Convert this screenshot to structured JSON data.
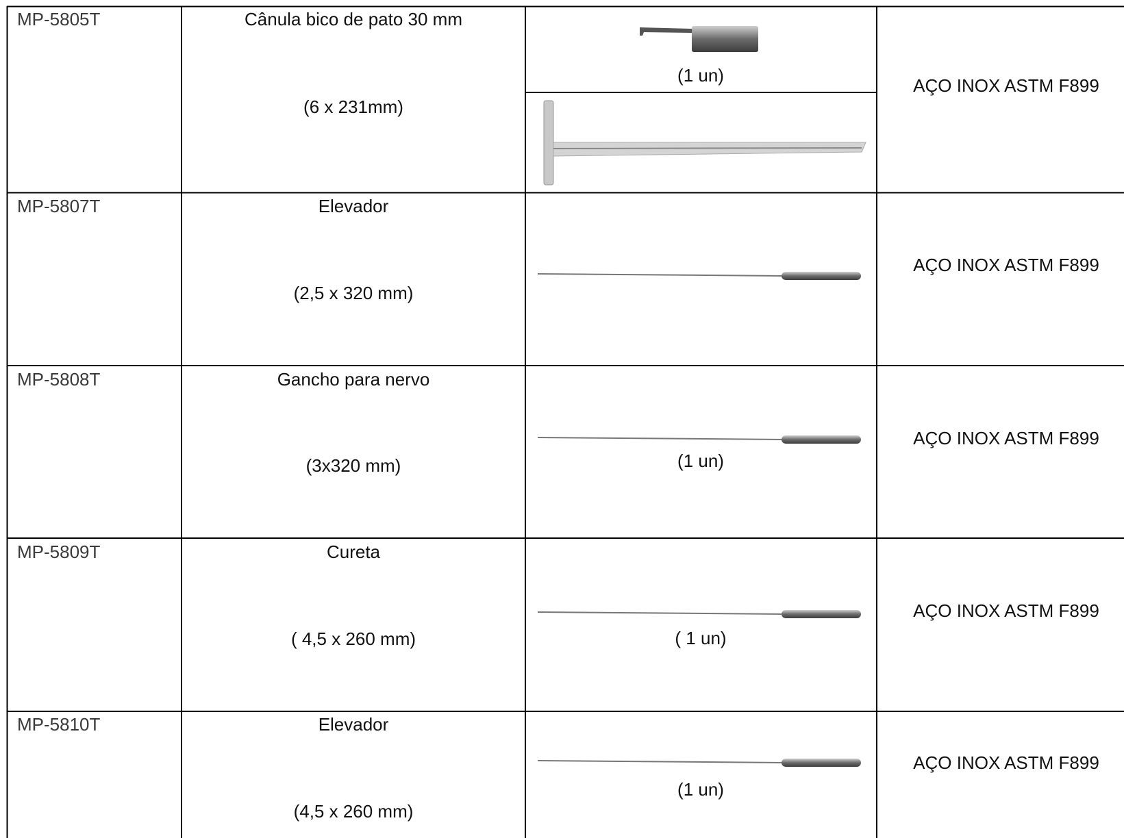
{
  "rows": [
    {
      "code": "MP-5805T",
      "name": "Cânula bico de pato 30 mm",
      "size": "(6 x 231mm)",
      "quantity": "(1 un)",
      "material": "AÇO INOX ASTM F899"
    },
    {
      "code": "MP-5807T",
      "name": "Elevador",
      "size": "(2,5 x 320 mm)",
      "material": "AÇO INOX ASTM F899"
    },
    {
      "code": "MP-5808T",
      "name": "Gancho para nervo",
      "size": "(3x320 mm)",
      "quantity": "(1 un)",
      "material": "AÇO INOX ASTM F899"
    },
    {
      "code": "MP-5809T",
      "name": "Cureta",
      "size": "( 4,5 x 260 mm)",
      "quantity": "( 1 un)",
      "material": "AÇO INOX ASTM F899"
    },
    {
      "code": "MP-5810T",
      "name": "Elevador",
      "size": "(4,5 x 260 mm)",
      "quantity": "(1 un)",
      "material": "AÇO INOX ASTM F899"
    }
  ]
}
